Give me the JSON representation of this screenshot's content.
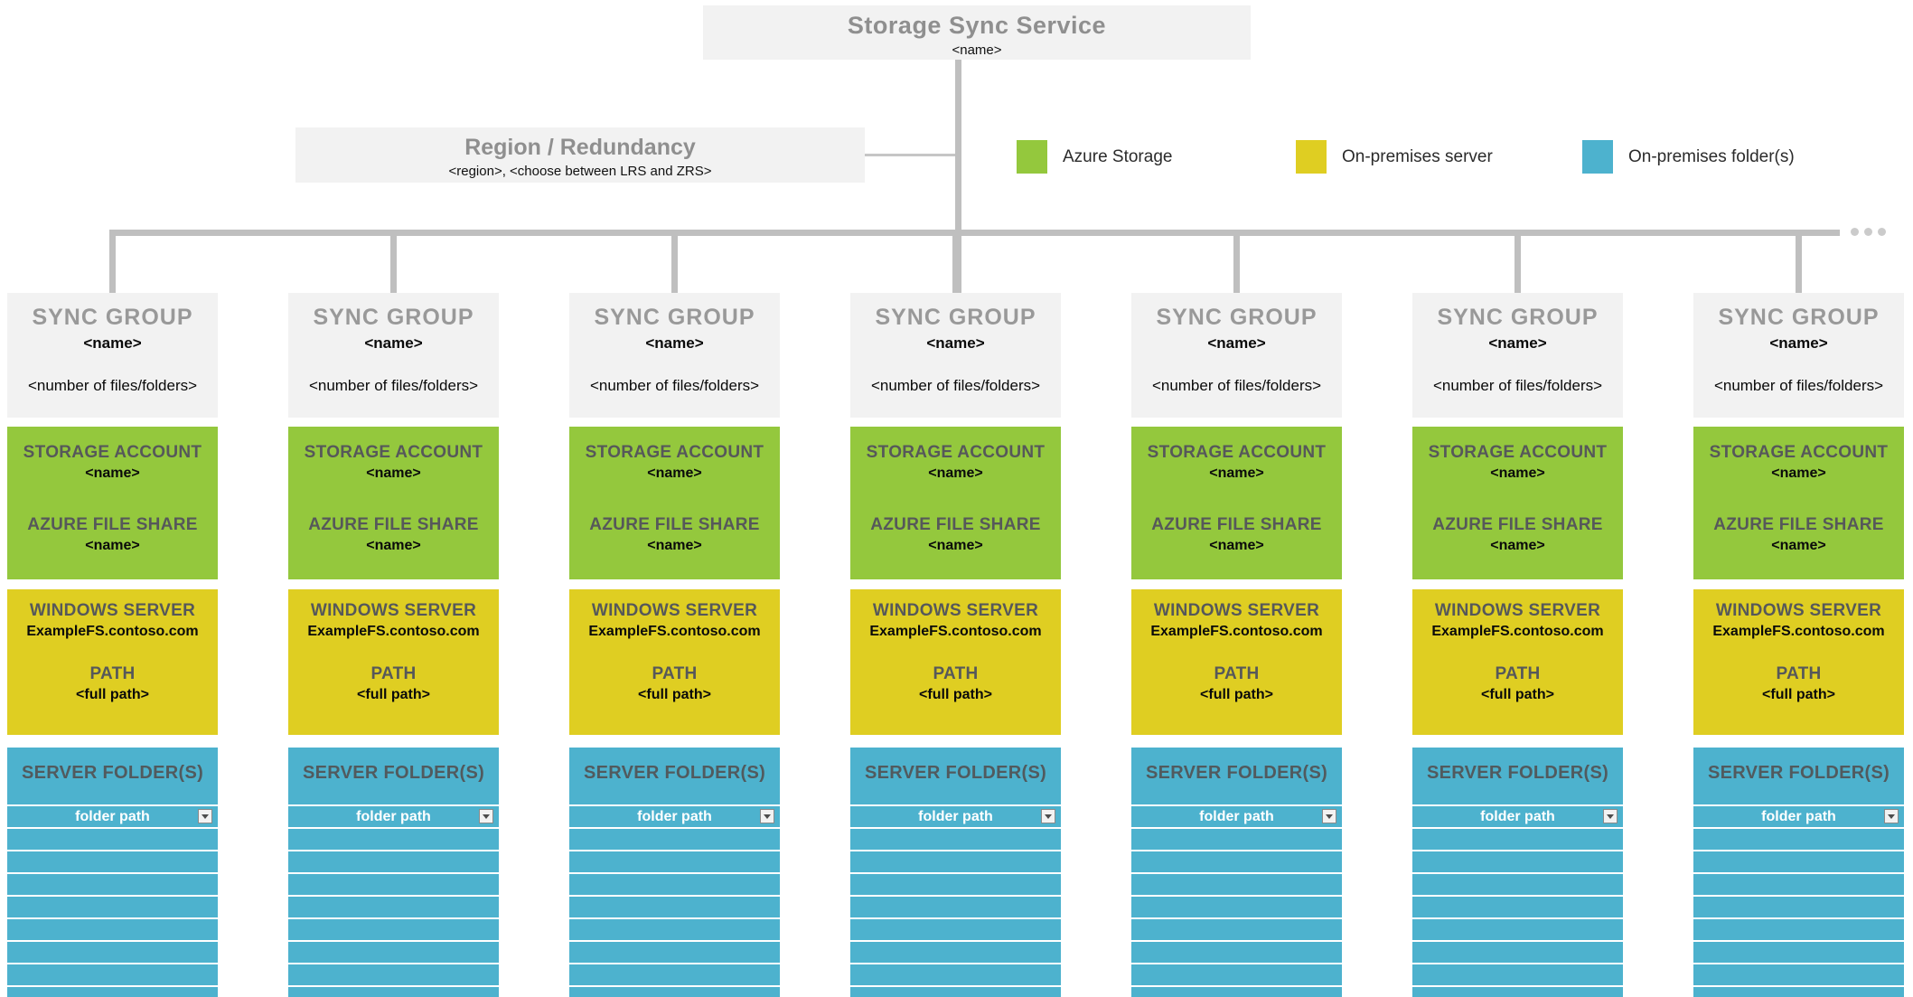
{
  "service": {
    "title": "Storage Sync Service",
    "name": "<name>"
  },
  "region": {
    "title": "Region / Redundancy",
    "details": "<region>, <choose between LRS and ZRS>"
  },
  "legend": {
    "items": [
      {
        "label": "Azure Storage",
        "color": "#94C83D"
      },
      {
        "label": "On-premises server",
        "color": "#DFCE22"
      },
      {
        "label": "On-premises folder(s)",
        "color": "#4DB2CE"
      }
    ]
  },
  "colors": {
    "panel_gray": "#F2F2F2",
    "connector_gray": "#BFBFBF",
    "azure_storage_green": "#94C83D",
    "on_premises_server_yellow": "#DFCE22",
    "on_premises_folders_teal": "#4DB2CE"
  },
  "sync_groups": {
    "count": 7,
    "template": {
      "header": "SYNC GROUP",
      "name": "<name>",
      "size": "<number of files/folders>",
      "storage_account": {
        "title": "STORAGE ACCOUNT",
        "name": "<name>"
      },
      "file_share": {
        "title": "AZURE FILE SHARE",
        "name": "<name>"
      },
      "windows_server": {
        "title": "WINDOWS SERVER",
        "host": "ExampleFS.contoso.com"
      },
      "path": {
        "title": "PATH",
        "value": "<full path>"
      },
      "server_folders": {
        "title": "SERVER FOLDER(S)",
        "selected": "folder path",
        "empty_row_count": 8
      }
    }
  }
}
